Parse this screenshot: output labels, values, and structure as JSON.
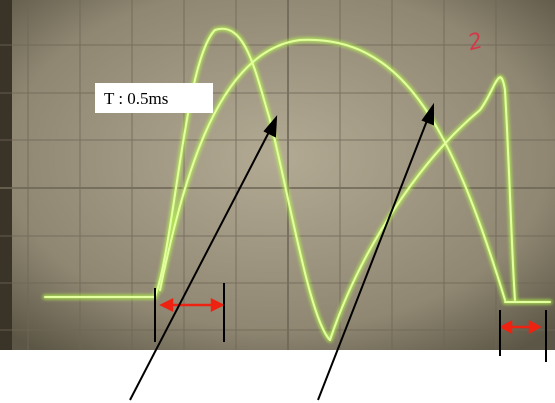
{
  "annotation": {
    "period_label": "T : 0.5ms",
    "handwritten_mark": "2"
  }
}
